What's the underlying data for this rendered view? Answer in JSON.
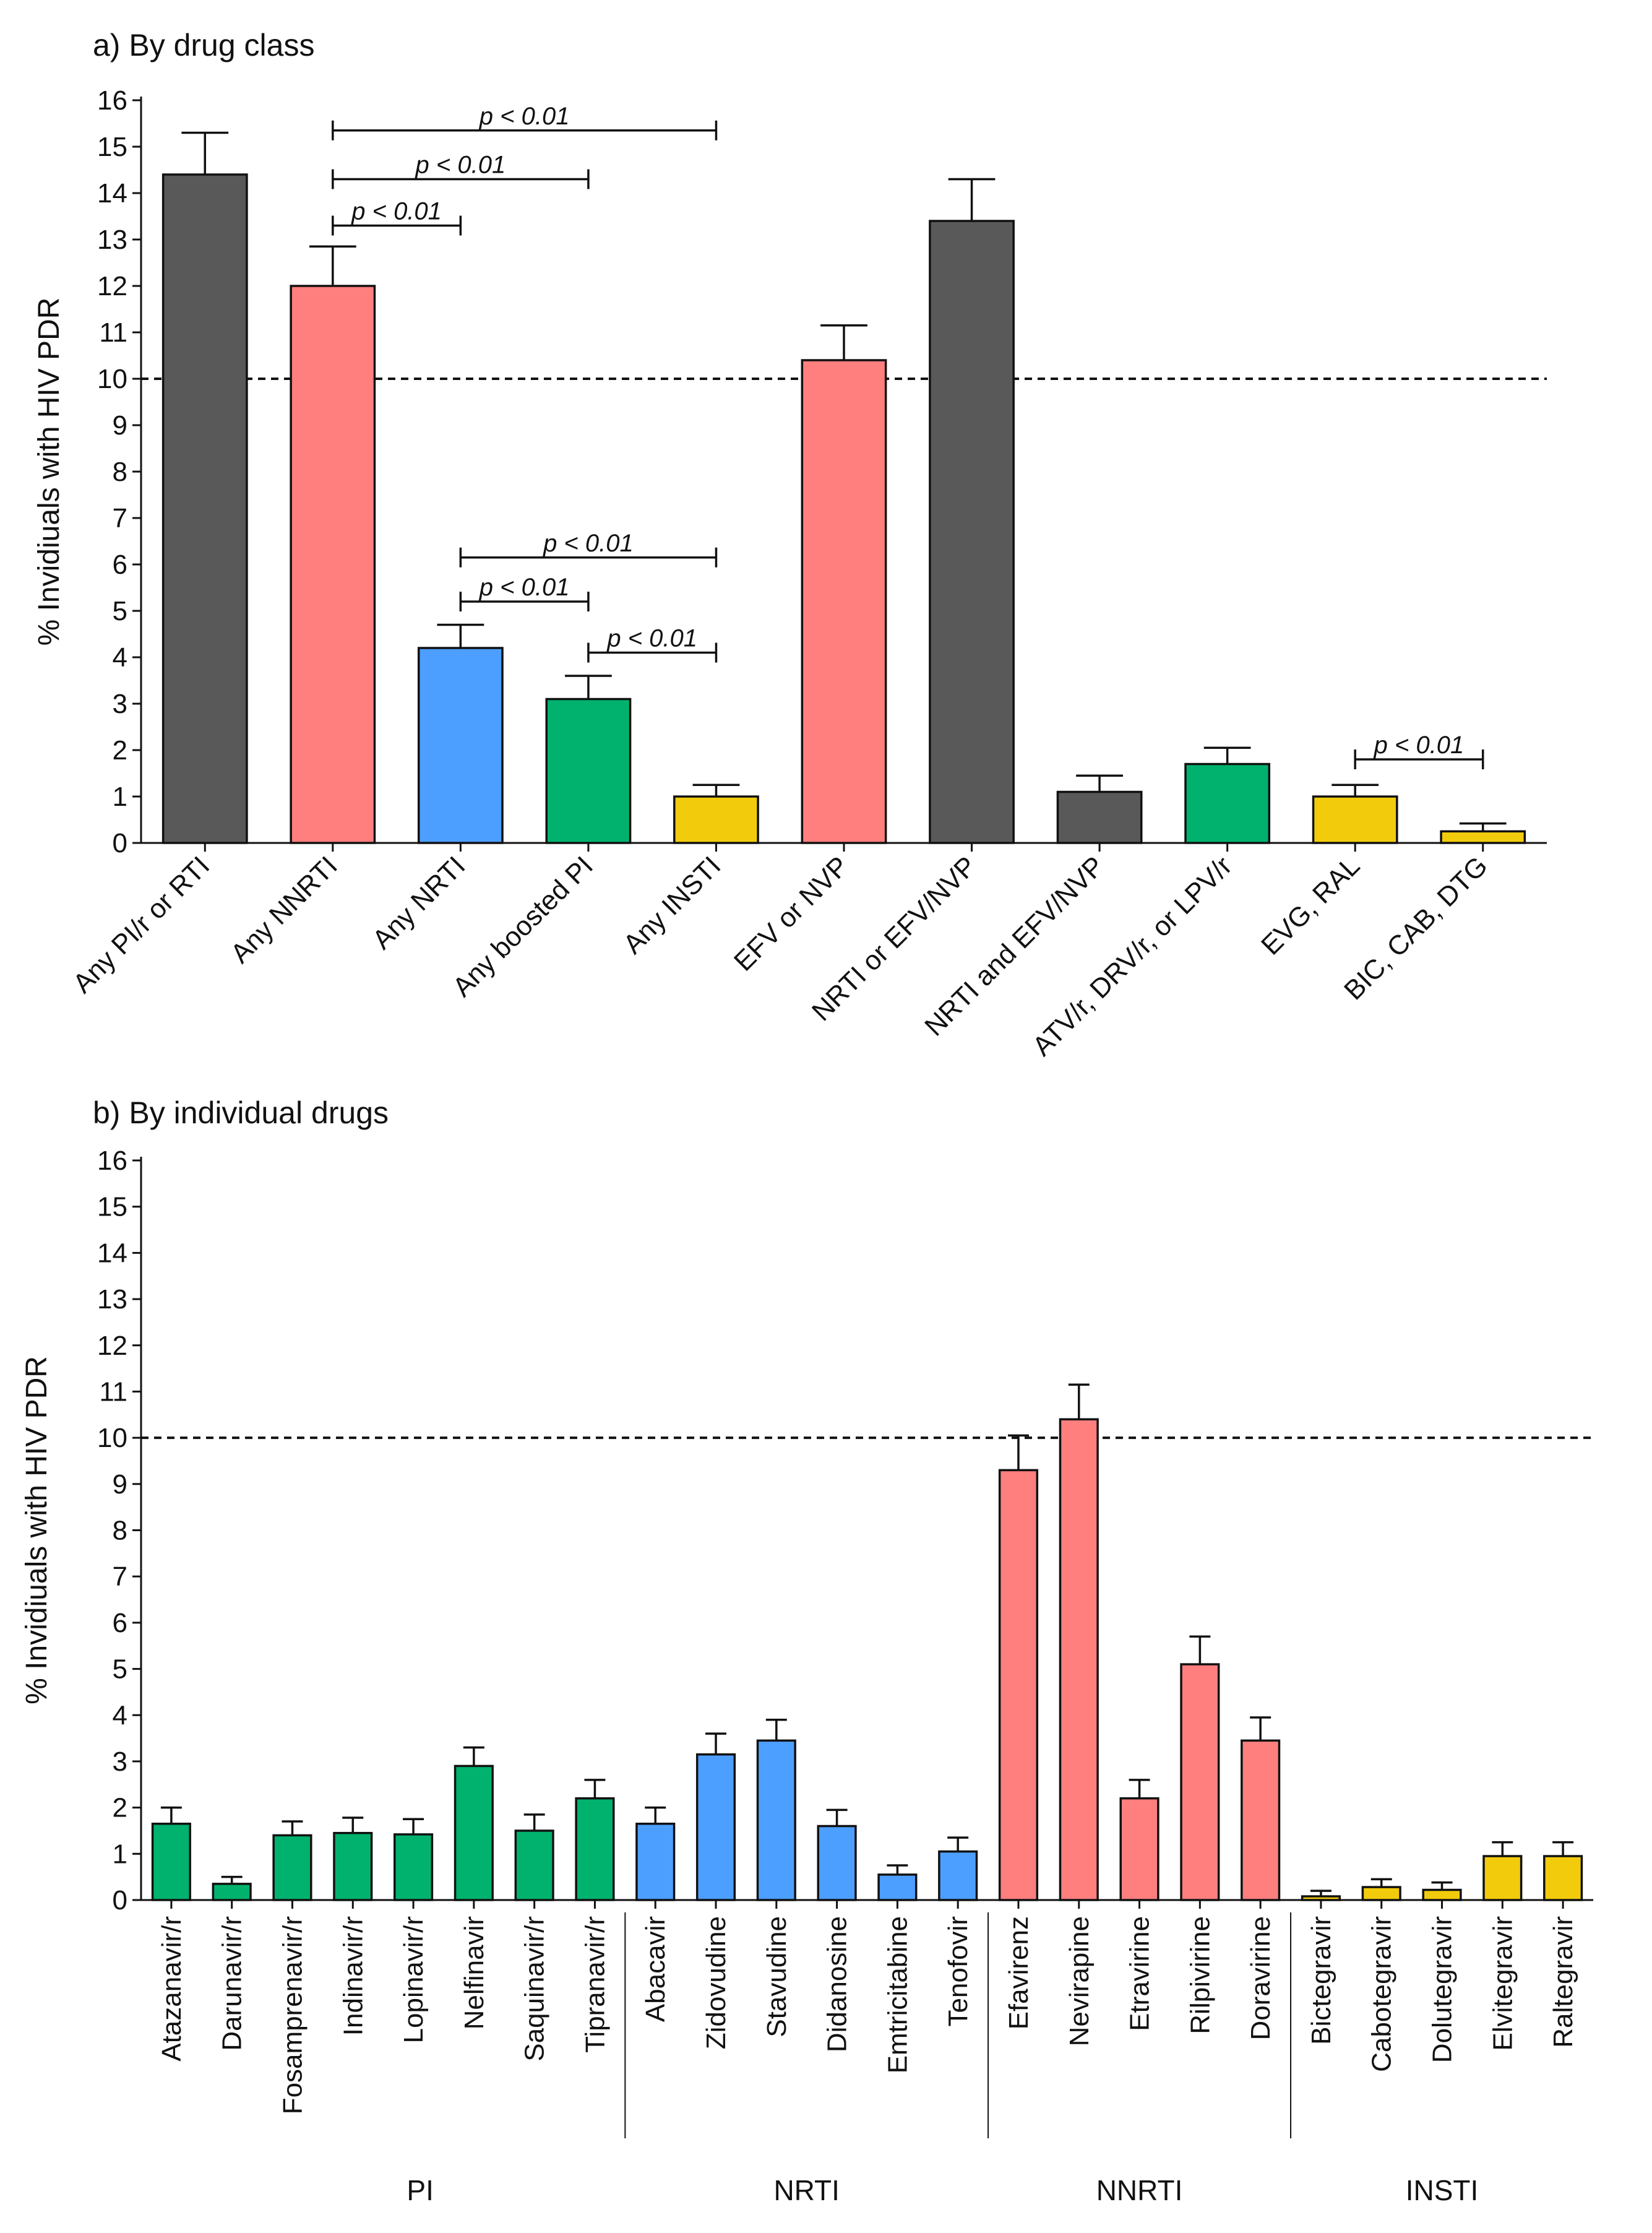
{
  "chart_data": [
    {
      "type": "bar",
      "title": "a) By drug class",
      "xlabel": "",
      "ylabel": "% Invidiuals with HIV PDR",
      "ylim": [
        0,
        16
      ],
      "yticks": [
        "0",
        "1",
        "2",
        "3",
        "4",
        "5",
        "6",
        "7",
        "8",
        "9",
        "10",
        "11",
        "12",
        "13",
        "14",
        "15",
        "16"
      ],
      "reference_line": 10,
      "categories": [
        "Any PI/r or RTI",
        "Any NNRTI",
        "Any NRTI",
        "Any boosted PI",
        "Any INSTI",
        "EFV or NVP",
        "NRTI or EFV/NVP",
        "NRTI and EFV/NVP",
        "ATV/r, DRV/r, or LPV/r",
        "EVG, RAL",
        "BIC, CAB, DTG"
      ],
      "values": [
        14.4,
        12.0,
        4.2,
        3.1,
        1.0,
        10.4,
        13.4,
        1.1,
        1.7,
        1.0,
        0.25
      ],
      "error_upper": [
        15.3,
        12.85,
        4.7,
        3.6,
        1.25,
        11.15,
        14.3,
        1.45,
        2.05,
        1.25,
        0.42
      ],
      "colors": [
        "#595959",
        "#ff7f7f",
        "#4d9fff",
        "#00b26e",
        "#f2cc0c",
        "#ff7f7f",
        "#595959",
        "#595959",
        "#00b26e",
        "#f2cc0c",
        "#f2cc0c"
      ],
      "annotations": [
        {
          "from": 1,
          "to": 4,
          "y": 15.35,
          "label": "p < 0.01"
        },
        {
          "from": 1,
          "to": 3,
          "y": 14.3,
          "label": "p < 0.01"
        },
        {
          "from": 1,
          "to": 2,
          "y": 13.3,
          "label": "p < 0.01"
        },
        {
          "from": 2,
          "to": 4,
          "y": 6.15,
          "label": "p < 0.01"
        },
        {
          "from": 2,
          "to": 3,
          "y": 5.2,
          "label": "p < 0.01"
        },
        {
          "from": 3,
          "to": 4,
          "y": 4.1,
          "label": "p < 0.01"
        },
        {
          "from": 9,
          "to": 10,
          "y": 1.8,
          "label": "p < 0.01"
        }
      ]
    },
    {
      "type": "bar",
      "title": "b) By individual drugs",
      "xlabel": "",
      "ylabel": "% Invidiuals with HIV PDR",
      "ylim": [
        0,
        16
      ],
      "yticks": [
        "0",
        "1",
        "2",
        "3",
        "4",
        "5",
        "6",
        "7",
        "8",
        "9",
        "10",
        "11",
        "12",
        "13",
        "14",
        "15",
        "16"
      ],
      "reference_line": 10,
      "categories": [
        "Atazanavir/r",
        "Darunavir/r",
        "Fosamprenavir/r",
        "Indinavir/r",
        "Lopinavir/r",
        "Nelfinavir",
        "Saquinavir/r",
        "Tipranavir/r",
        "Abacavir",
        "Zidovudine",
        "Stavudine",
        "Didanosine",
        "Emtricitabine",
        "Tenofovir",
        "Efavirenz",
        "Nevirapine",
        "Etravirine",
        "Rilpivirine",
        "Doravirine",
        "Bictegravir",
        "Cabotegravir",
        "Dolutegravir",
        "Elvitegravir",
        "Raltegravir"
      ],
      "values": [
        1.65,
        0.35,
        1.4,
        1.45,
        1.42,
        2.9,
        1.5,
        2.2,
        1.65,
        3.15,
        3.45,
        1.6,
        0.55,
        1.05,
        9.3,
        10.4,
        2.2,
        5.1,
        3.45,
        0.08,
        0.28,
        0.22,
        0.95,
        0.95
      ],
      "error_upper": [
        2.0,
        0.5,
        1.7,
        1.78,
        1.75,
        3.3,
        1.85,
        2.6,
        2.0,
        3.6,
        3.9,
        1.95,
        0.75,
        1.35,
        10.05,
        11.15,
        2.6,
        5.7,
        3.95,
        0.2,
        0.45,
        0.38,
        1.25,
        1.25
      ],
      "colors": [
        "#00b26e",
        "#00b26e",
        "#00b26e",
        "#00b26e",
        "#00b26e",
        "#00b26e",
        "#00b26e",
        "#00b26e",
        "#4d9fff",
        "#4d9fff",
        "#4d9fff",
        "#4d9fff",
        "#4d9fff",
        "#4d9fff",
        "#ff7f7f",
        "#ff7f7f",
        "#ff7f7f",
        "#ff7f7f",
        "#ff7f7f",
        "#f2cc0c",
        "#f2cc0c",
        "#f2cc0c",
        "#f2cc0c",
        "#f2cc0c"
      ],
      "groups": [
        {
          "label": "PI",
          "start": 0,
          "end": 7
        },
        {
          "label": "NRTI",
          "start": 8,
          "end": 13
        },
        {
          "label": "NNRTI",
          "start": 14,
          "end": 18
        },
        {
          "label": "INSTI",
          "start": 19,
          "end": 23
        }
      ]
    }
  ]
}
